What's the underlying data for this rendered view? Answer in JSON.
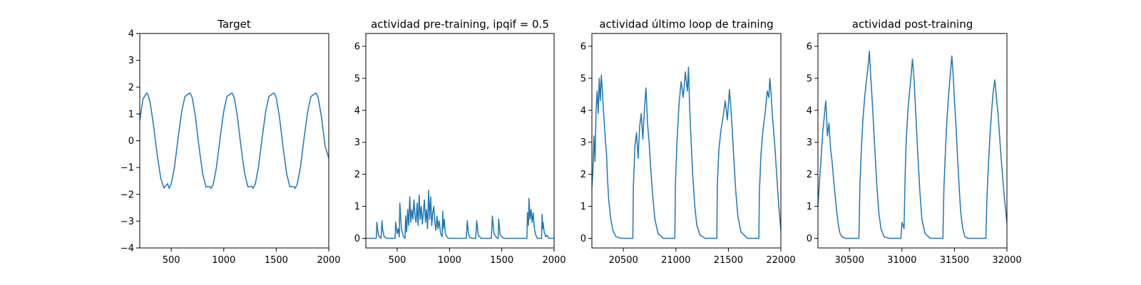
{
  "figure": {
    "background": "#ffffff",
    "line_color": "#1f77b4"
  },
  "chart_data": [
    {
      "type": "line",
      "title": "Target",
      "xlabel": "",
      "ylabel": "",
      "xlim": [
        200,
        2000
      ],
      "ylim": [
        -4,
        4
      ],
      "xticks": [
        500,
        1000,
        1500,
        2000
      ],
      "yticks": [
        -4,
        -3,
        -2,
        -1,
        0,
        1,
        2,
        3,
        4
      ],
      "grid": false,
      "series": [
        {
          "x": [
            200,
            230,
            265,
            280,
            300,
            330,
            365,
            400,
            430,
            465,
            480,
            500,
            530,
            565,
            600,
            630,
            665,
            680,
            700,
            730,
            765,
            800,
            830,
            865,
            880,
            900,
            930,
            965,
            1000,
            1030,
            1065,
            1080,
            1100,
            1130,
            1165,
            1200,
            1230,
            1265,
            1280,
            1300,
            1330,
            1365,
            1400,
            1430,
            1465,
            1480,
            1500,
            1530,
            1565,
            1600,
            1630,
            1665,
            1680,
            1700,
            1730,
            1765,
            1800,
            1830,
            1865,
            1880,
            1900,
            1930,
            1965,
            2000
          ],
          "y": [
            0.75,
            1.55,
            1.78,
            1.7,
            1.4,
            0.6,
            -0.5,
            -1.4,
            -1.76,
            -1.6,
            -1.78,
            -1.6,
            -1.0,
            0.1,
            1.1,
            1.65,
            1.75,
            1.78,
            1.6,
            0.9,
            -0.25,
            -1.25,
            -1.72,
            -1.7,
            -1.78,
            -1.62,
            -1.0,
            0.1,
            1.1,
            1.65,
            1.75,
            1.78,
            1.6,
            0.9,
            -0.25,
            -1.25,
            -1.72,
            -1.7,
            -1.78,
            -1.62,
            -1.0,
            0.1,
            1.1,
            1.65,
            1.75,
            1.78,
            1.6,
            0.9,
            -0.25,
            -1.25,
            -1.72,
            -1.7,
            -1.78,
            -1.62,
            -1.0,
            0.1,
            1.1,
            1.65,
            1.75,
            1.78,
            1.6,
            0.9,
            -0.2,
            -0.65
          ]
        }
      ]
    },
    {
      "type": "line",
      "title": "actividad pre-training, ipqif = 0.5",
      "xlabel": "",
      "ylabel": "",
      "xlim": [
        200,
        2000
      ],
      "ylim": [
        -0.3,
        6.4
      ],
      "xticks": [
        500,
        1000,
        1500,
        2000
      ],
      "yticks": [
        0,
        1,
        2,
        3,
        4,
        5,
        6
      ],
      "grid": false,
      "series": [
        {
          "x": [
            200,
            300,
            305,
            320,
            345,
            355,
            360,
            375,
            400,
            420,
            480,
            485,
            500,
            510,
            520,
            525,
            540,
            560,
            575,
            580,
            590,
            600,
            610,
            620,
            630,
            640,
            650,
            660,
            670,
            680,
            690,
            700,
            710,
            720,
            730,
            740,
            750,
            760,
            770,
            780,
            790,
            800,
            810,
            820,
            830,
            840,
            850,
            860,
            870,
            880,
            890,
            900,
            915,
            930,
            935,
            940,
            950,
            960,
            975,
            990,
            1000,
            1020,
            1060,
            1080,
            1120,
            1160,
            1170,
            1180,
            1195,
            1220,
            1250,
            1260,
            1275,
            1300,
            1380,
            1400,
            1410,
            1425,
            1450,
            1465,
            1470,
            1485,
            1520,
            1740,
            1745,
            1755,
            1760,
            1770,
            1780,
            1790,
            1800,
            1810,
            1820,
            1840,
            1860,
            1880,
            1885,
            1890,
            1895,
            1905,
            1920,
            1930,
            1950,
            1970,
            2000
          ],
          "y": [
            0.0,
            0.0,
            0.5,
            0.1,
            0.0,
            0.55,
            0.3,
            0.05,
            0.0,
            0.0,
            0.0,
            0.5,
            0.15,
            0.3,
            0.05,
            1.1,
            0.3,
            0.05,
            0.0,
            0.7,
            0.2,
            0.9,
            0.4,
            1.3,
            0.5,
            0.9,
            0.6,
            1.2,
            0.7,
            0.5,
            1.1,
            0.4,
            1.35,
            0.6,
            1.0,
            0.45,
            0.8,
            1.2,
            0.5,
            0.9,
            0.3,
            1.5,
            0.6,
            1.3,
            0.4,
            0.8,
            1.0,
            0.5,
            0.25,
            0.7,
            0.3,
            0.55,
            0.15,
            0.05,
            0.85,
            0.3,
            0.6,
            0.15,
            0.05,
            0.0,
            0.0,
            0.0,
            0.0,
            0.0,
            0.0,
            0.0,
            0.55,
            0.15,
            0.02,
            0.0,
            0.0,
            0.55,
            0.1,
            0.0,
            0.0,
            0.0,
            0.7,
            0.15,
            0.02,
            0.0,
            0.6,
            0.1,
            0.0,
            0.0,
            0.8,
            0.4,
            1.25,
            0.6,
            0.9,
            0.5,
            0.8,
            0.35,
            0.15,
            0.0,
            0.0,
            0.0,
            0.75,
            0.3,
            0.5,
            0.2,
            0.05,
            0.1,
            0.0,
            0.0,
            0.0
          ]
        }
      ]
    },
    {
      "type": "line",
      "title": "actividad último loop de training",
      "xlabel": "",
      "ylabel": "",
      "xlim": [
        20200,
        22000
      ],
      "ylim": [
        -0.3,
        6.4
      ],
      "xticks": [
        20500,
        21000,
        21500,
        22000
      ],
      "yticks": [
        0,
        1,
        2,
        3,
        4,
        5,
        6
      ],
      "grid": false,
      "series": [
        {
          "x": [
            20200,
            20210,
            20220,
            20230,
            20240,
            20250,
            20260,
            20270,
            20280,
            20290,
            20300,
            20310,
            20320,
            20330,
            20340,
            20350,
            20360,
            20380,
            20400,
            20430,
            20480,
            20520,
            20590,
            20595,
            20610,
            20625,
            20640,
            20655,
            20670,
            20685,
            20700,
            20715,
            20730,
            20745,
            20760,
            20780,
            20800,
            20830,
            20880,
            20930,
            20990,
            20995,
            21010,
            21030,
            21050,
            21070,
            21090,
            21110,
            21120,
            21130,
            21140,
            21160,
            21180,
            21200,
            21230,
            21280,
            21330,
            21390,
            21395,
            21410,
            21430,
            21450,
            21470,
            21490,
            21510,
            21525,
            21535,
            21550,
            21570,
            21590,
            21620,
            21680,
            21730,
            21790,
            21795,
            21810,
            21830,
            21850,
            21870,
            21885,
            21895,
            21905,
            21920,
            21940,
            21960,
            21980,
            22000
          ],
          "y": [
            1.6,
            2.1,
            3.2,
            2.4,
            4.0,
            4.6,
            3.9,
            5.0,
            4.3,
            5.1,
            4.6,
            4.0,
            3.5,
            3.0,
            2.6,
            1.8,
            1.2,
            0.6,
            0.25,
            0.05,
            0.0,
            0.0,
            0.0,
            1.6,
            2.9,
            3.3,
            2.5,
            3.5,
            3.9,
            3.1,
            4.0,
            4.7,
            3.6,
            3.0,
            2.2,
            1.3,
            0.6,
            0.15,
            0.0,
            0.0,
            0.0,
            1.6,
            3.0,
            4.2,
            4.9,
            4.4,
            5.2,
            4.6,
            5.35,
            4.2,
            3.4,
            2.0,
            1.0,
            0.4,
            0.1,
            0.0,
            0.0,
            0.0,
            1.7,
            2.8,
            3.4,
            3.8,
            4.3,
            3.7,
            4.65,
            4.0,
            3.5,
            2.6,
            1.5,
            0.7,
            0.2,
            0.0,
            0.0,
            0.0,
            1.4,
            2.6,
            3.4,
            3.9,
            4.6,
            4.4,
            5.0,
            4.6,
            3.8,
            3.0,
            2.0,
            1.0,
            0.25
          ]
        }
      ]
    },
    {
      "type": "line",
      "title": "actividad post-training",
      "xlabel": "",
      "ylabel": "",
      "xlim": [
        30200,
        32000
      ],
      "ylim": [
        -0.3,
        6.4
      ],
      "xticks": [
        30500,
        31000,
        31500,
        32000
      ],
      "yticks": [
        0,
        1,
        2,
        3,
        4,
        5,
        6
      ],
      "grid": false,
      "series": [
        {
          "x": [
            30200,
            30215,
            30230,
            30245,
            30260,
            30275,
            30290,
            30305,
            30320,
            30335,
            30350,
            30365,
            30380,
            30395,
            30410,
            30430,
            30460,
            30500,
            30560,
            30590,
            30600,
            30615,
            30630,
            30645,
            30660,
            30675,
            30690,
            30700,
            30715,
            30730,
            30745,
            30760,
            30780,
            30800,
            30830,
            30880,
            30940,
            30990,
            31000,
            31020,
            31030,
            31040,
            31055,
            31070,
            31085,
            31100,
            31115,
            31130,
            31150,
            31170,
            31190,
            31220,
            31270,
            31330,
            31390,
            31400,
            31415,
            31430,
            31445,
            31460,
            31475,
            31490,
            31500,
            31515,
            31530,
            31545,
            31560,
            31580,
            31600,
            31630,
            31680,
            31740,
            31800,
            31810,
            31825,
            31840,
            31855,
            31870,
            31885,
            31900,
            31915,
            31930,
            31945,
            31960,
            31975,
            31990,
            32000
          ],
          "y": [
            1.0,
            1.8,
            2.5,
            3.3,
            3.8,
            4.3,
            3.2,
            3.6,
            2.8,
            2.4,
            1.8,
            1.3,
            0.8,
            0.4,
            0.15,
            0.05,
            0.0,
            0.0,
            0.0,
            0.0,
            1.7,
            2.9,
            3.8,
            4.4,
            4.9,
            5.3,
            5.85,
            5.2,
            4.4,
            3.5,
            2.6,
            1.7,
            0.8,
            0.3,
            0.05,
            0.0,
            0.0,
            0.0,
            0.5,
            0.3,
            1.9,
            3.0,
            3.9,
            4.5,
            5.0,
            5.6,
            5.0,
            4.0,
            2.7,
            1.5,
            0.6,
            0.15,
            0.0,
            0.0,
            0.0,
            1.6,
            2.8,
            3.8,
            4.5,
            5.1,
            5.7,
            5.0,
            4.3,
            3.5,
            2.5,
            1.6,
            0.8,
            0.3,
            0.05,
            0.0,
            0.0,
            0.0,
            0.0,
            1.3,
            2.4,
            3.3,
            4.0,
            4.6,
            4.95,
            4.4,
            3.9,
            3.2,
            2.5,
            1.9,
            1.3,
            0.8,
            0.5
          ]
        }
      ]
    }
  ]
}
